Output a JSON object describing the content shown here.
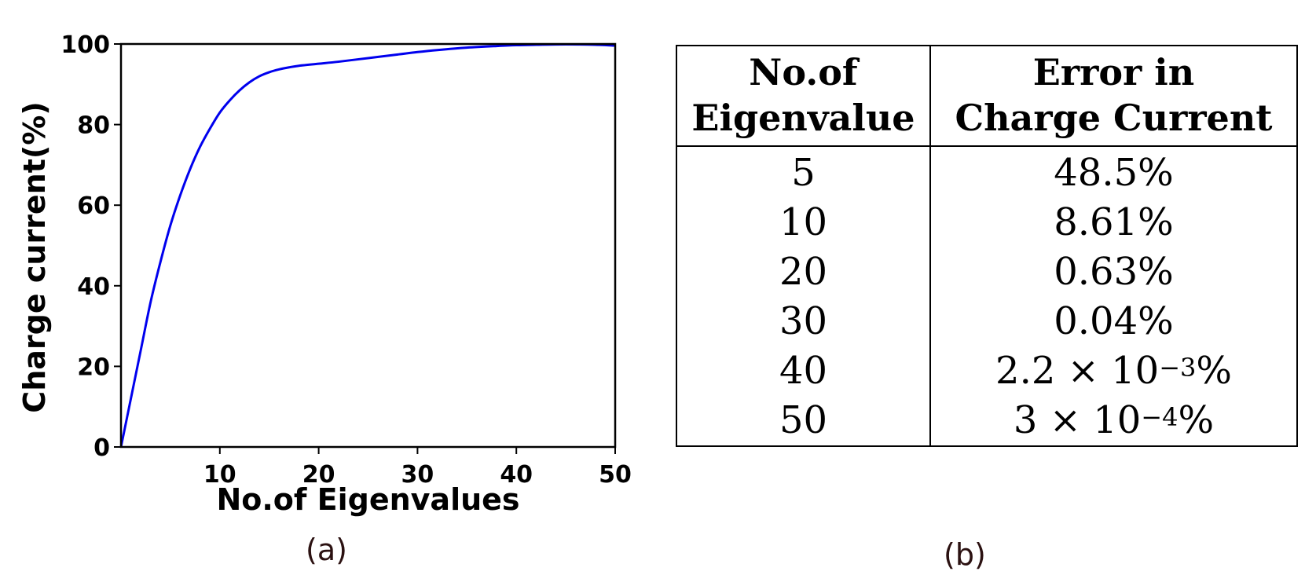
{
  "chart_data": {
    "type": "line",
    "xlabel": "No.of Eigenvalues",
    "ylabel": "Charge current(%)",
    "xlim": [
      0,
      50
    ],
    "ylim": [
      0,
      100
    ],
    "xticks": [
      10,
      20,
      30,
      40,
      50
    ],
    "yticks": [
      0,
      20,
      40,
      60,
      80,
      100
    ],
    "grid": false,
    "series": [
      {
        "color": "#0000ee",
        "x": [
          0,
          1,
          2,
          3,
          4,
          5,
          6,
          7,
          8,
          9,
          10,
          11,
          12,
          13,
          14,
          15,
          16,
          17,
          18,
          20,
          22,
          25,
          28,
          30,
          32,
          35,
          38,
          40,
          42,
          45,
          48,
          50
        ],
        "y": [
          0,
          12,
          24,
          36,
          46,
          55,
          62.5,
          69,
          74.5,
          79,
          83,
          86,
          88.5,
          90.5,
          92,
          93,
          93.7,
          94.2,
          94.6,
          95.1,
          95.6,
          96.5,
          97.4,
          98.0,
          98.5,
          99.1,
          99.5,
          99.7,
          99.8,
          99.9,
          99.8,
          99.6
        ]
      }
    ],
    "caption": "(a)"
  },
  "table": {
    "headers": [
      {
        "line1": "No.of",
        "line2": "Eigenvalue"
      },
      {
        "line1": "Error in",
        "line2": "Charge Current"
      }
    ],
    "rows": [
      {
        "eig": "5",
        "base": "48.5%",
        "exp": "",
        "pct": ""
      },
      {
        "eig": "10",
        "base": "8.61%",
        "exp": "",
        "pct": ""
      },
      {
        "eig": "20",
        "base": "0.63%",
        "exp": "",
        "pct": ""
      },
      {
        "eig": "30",
        "base": "0.04%",
        "exp": "",
        "pct": ""
      },
      {
        "eig": "40",
        "base": "2.2 × 10",
        "exp": "−3",
        "pct": "%"
      },
      {
        "eig": "50",
        "base": "3 × 10",
        "exp": "−4",
        "pct": "%"
      }
    ],
    "caption": "(b)"
  }
}
